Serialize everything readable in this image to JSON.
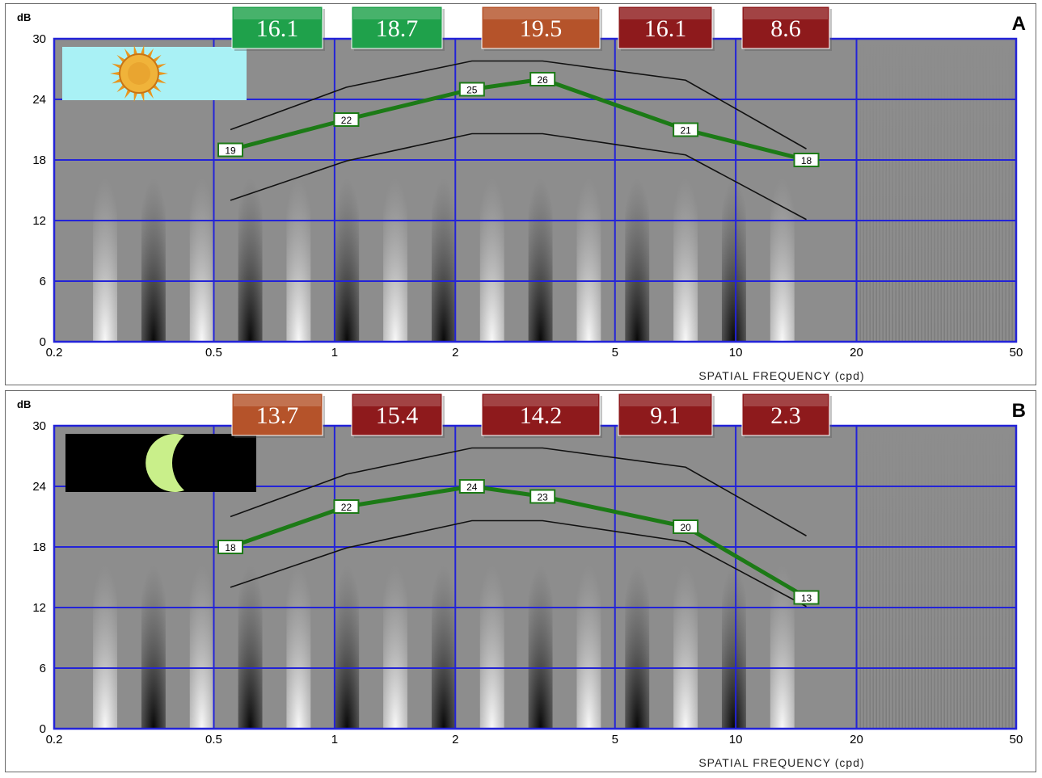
{
  "x_tick_labels": [
    "0.2",
    "0.5",
    "1",
    "2",
    "5",
    "10",
    "20",
    "50"
  ],
  "y_tick_labels": [
    "0",
    "6",
    "12",
    "18",
    "24",
    "30"
  ],
  "y_unit": "dB",
  "x_axis_label": "SPATIAL FREQUENCY (cpd)",
  "colors": {
    "grid": "#2323d8",
    "curve": "#1c7a16",
    "norm_lines": "#111111",
    "badge_green": "#1fa14b",
    "badge_orange": "#b5532a",
    "badge_red": "#8e1a1c",
    "panel_bg_gray": "#8d8d8d"
  },
  "chart_data": [
    {
      "type": "line",
      "panel_letter": "A",
      "condition_icon": "sun-icon",
      "x_scale": "log",
      "xlim": [
        0.2,
        50
      ],
      "ylim": [
        0,
        30
      ],
      "grid": true,
      "xlabel": "SPATIAL FREQUENCY (cpd)",
      "ylabel": "dB",
      "x": [
        0.55,
        1.07,
        2.2,
        3.3,
        7.5,
        15
      ],
      "measured": [
        19,
        22,
        25,
        26,
        21,
        18
      ],
      "norm_upper": [
        21,
        25.2,
        27.8,
        27.8,
        25.9,
        19.1
      ],
      "norm_lower": [
        14,
        17.9,
        20.6,
        20.6,
        18.5,
        12.1
      ],
      "badges": [
        {
          "value": "16.1",
          "color": "green"
        },
        {
          "value": "18.7",
          "color": "green"
        },
        {
          "value": "19.5",
          "color": "orange"
        },
        {
          "value": "16.1",
          "color": "red"
        },
        {
          "value": "8.6",
          "color": "red"
        }
      ]
    },
    {
      "type": "line",
      "panel_letter": "B",
      "condition_icon": "moon-icon",
      "x_scale": "log",
      "xlim": [
        0.2,
        50
      ],
      "ylim": [
        0,
        30
      ],
      "grid": true,
      "xlabel": "SPATIAL FREQUENCY (cpd)",
      "ylabel": "dB",
      "x": [
        0.55,
        1.07,
        2.2,
        3.3,
        7.5,
        15
      ],
      "measured": [
        18,
        22,
        24,
        23,
        20,
        13
      ],
      "norm_upper": [
        21,
        25.2,
        27.8,
        27.8,
        25.9,
        19.1
      ],
      "norm_lower": [
        14,
        17.9,
        20.6,
        20.6,
        18.5,
        12.1
      ],
      "badges": [
        {
          "value": "13.7",
          "color": "orange"
        },
        {
          "value": "15.4",
          "color": "red"
        },
        {
          "value": "14.2",
          "color": "red"
        },
        {
          "value": "9.1",
          "color": "red"
        },
        {
          "value": "2.3",
          "color": "red"
        }
      ]
    }
  ]
}
